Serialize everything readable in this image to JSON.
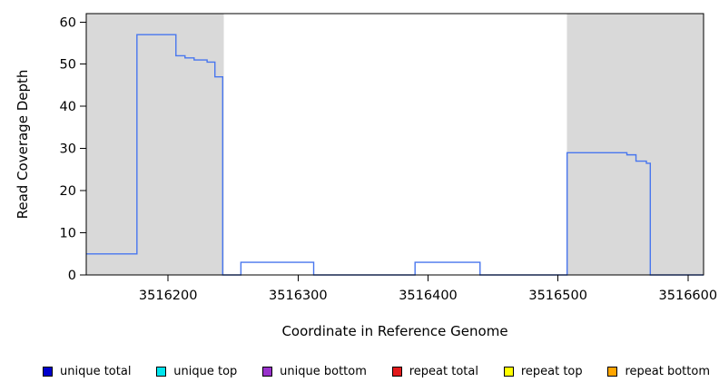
{
  "figure": {
    "background": "#ffffff"
  },
  "chart_data": {
    "type": "step-line",
    "title": "",
    "xlabel": "Coordinate in Reference Genome",
    "ylabel": "Read Coverage Depth",
    "xlim": [
      3516137,
      3516612
    ],
    "ylim": [
      0,
      62
    ],
    "x_ticks": [
      3516200,
      3516300,
      3516400,
      3516500,
      3516600
    ],
    "y_ticks": [
      0,
      10,
      20,
      30,
      40,
      50,
      60
    ],
    "grid": false,
    "legend_position": "bottom",
    "shaded_regions": [
      {
        "name": "repeat-region-left",
        "x0": 3516137,
        "x1": 3516243,
        "color": "#d9d9d9"
      },
      {
        "name": "repeat-region-right",
        "x0": 3516507,
        "x1": 3516612,
        "color": "#d9d9d9"
      }
    ],
    "series": [
      {
        "name": "unique total",
        "color": "#4876ee",
        "width": 1.4,
        "steps": [
          {
            "x0": 3516137,
            "x1": 3516176,
            "y": 5
          },
          {
            "x0": 3516176,
            "x1": 3516206,
            "y": 57
          },
          {
            "x0": 3516206,
            "x1": 3516213,
            "y": 52
          },
          {
            "x0": 3516213,
            "x1": 3516220,
            "y": 51.5
          },
          {
            "x0": 3516220,
            "x1": 3516230,
            "y": 51
          },
          {
            "x0": 3516230,
            "x1": 3516236,
            "y": 50.5
          },
          {
            "x0": 3516236,
            "x1": 3516242,
            "y": 47
          },
          {
            "x0": 3516242,
            "x1": 3516256,
            "y": 0
          },
          {
            "x0": 3516256,
            "x1": 3516312,
            "y": 3
          },
          {
            "x0": 3516312,
            "x1": 3516390,
            "y": 0
          },
          {
            "x0": 3516390,
            "x1": 3516440,
            "y": 3
          },
          {
            "x0": 3516440,
            "x1": 3516507,
            "y": 0
          },
          {
            "x0": 3516507,
            "x1": 3516553,
            "y": 29
          },
          {
            "x0": 3516553,
            "x1": 3516560,
            "y": 28.5
          },
          {
            "x0": 3516560,
            "x1": 3516568,
            "y": 27
          },
          {
            "x0": 3516568,
            "x1": 3516571,
            "y": 26.5
          },
          {
            "x0": 3516571,
            "x1": 3516612,
            "y": 0
          }
        ]
      },
      {
        "name": "repeat total",
        "color": "#ff0000",
        "width": 1,
        "steps": [
          {
            "x0": 3516137,
            "x1": 3516508,
            "y": 0
          }
        ]
      },
      {
        "name": "unique bottom",
        "color": "#9932cc",
        "width": 1,
        "steps": [
          {
            "x0": 3516440,
            "x1": 3516507,
            "y": 0
          }
        ]
      }
    ]
  },
  "legend": {
    "items": [
      {
        "label": "unique total",
        "color": "#0000cd"
      },
      {
        "label": "unique top",
        "color": "#00e5ee"
      },
      {
        "label": "unique bottom",
        "color": "#9932cc"
      },
      {
        "label": "repeat total",
        "color": "#e31a1c"
      },
      {
        "label": "repeat top",
        "color": "#ffff00"
      },
      {
        "label": "repeat bottom",
        "color": "#ffa500"
      }
    ]
  }
}
